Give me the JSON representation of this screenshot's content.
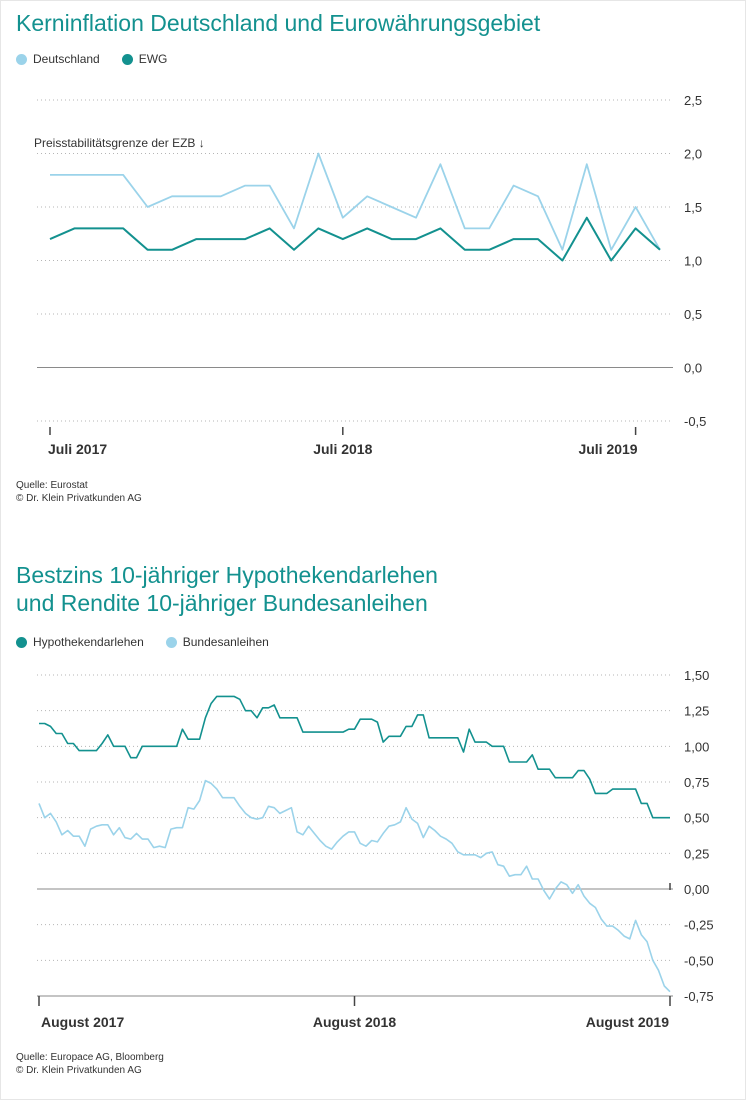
{
  "colors": {
    "accent": "#13918f",
    "light": "#9bd3ea",
    "text": "#333333",
    "grid": "#aaaaaa"
  },
  "chart_data": [
    {
      "type": "line",
      "title": "Kerninflation Deutschland und Eurowährungsgebiet",
      "legend": [
        "Deutschland",
        "EWG"
      ],
      "series": [
        {
          "name": "Deutschland",
          "color": "#9bd3ea",
          "values": [
            1.8,
            1.8,
            1.8,
            1.8,
            1.5,
            1.6,
            1.6,
            1.6,
            1.7,
            1.7,
            1.3,
            2.0,
            1.4,
            1.6,
            1.5,
            1.4,
            1.9,
            1.3,
            1.3,
            1.7,
            1.6,
            1.1,
            1.9,
            1.1,
            1.5,
            1.1
          ]
        },
        {
          "name": "EWG",
          "color": "#13918f",
          "values": [
            1.2,
            1.3,
            1.3,
            1.3,
            1.1,
            1.1,
            1.2,
            1.2,
            1.2,
            1.3,
            1.1,
            1.3,
            1.2,
            1.3,
            1.2,
            1.2,
            1.3,
            1.1,
            1.1,
            1.2,
            1.2,
            1.0,
            1.4,
            1.0,
            1.3,
            1.1
          ]
        }
      ],
      "x_labels": [
        "Juli 2017",
        "Juli 2018",
        "Juli 2019"
      ],
      "y_ticks": [
        "2,5",
        "2,0",
        "1,5",
        "1,0",
        "0,5",
        "0,0",
        "-0,5"
      ],
      "ylim": [
        -0.5,
        2.5
      ],
      "annotation": "Preisstabilitätsgrenze der EZB ↓",
      "source": [
        "Quelle: Eurostat",
        "© Dr. Klein Privatkunden AG"
      ]
    },
    {
      "type": "line",
      "title": [
        "Bestzins 10-jähriger Hypothekendarlehen",
        "und Rendite 10-jähriger Bundesanleihen"
      ],
      "legend": [
        "Hypothekendarlehen",
        "Bundesanleihen"
      ],
      "series": [
        {
          "name": "Hypothekendarlehen",
          "color": "#13918f",
          "points": [
            [
              0,
              1.16
            ],
            [
              1,
              1.16
            ],
            [
              2,
              1.14
            ],
            [
              3,
              1.09
            ],
            [
              4,
              1.09
            ],
            [
              5,
              1.02
            ],
            [
              6,
              1.02
            ],
            [
              7,
              0.97
            ],
            [
              8,
              0.97
            ],
            [
              9,
              0.97
            ],
            [
              10,
              0.97
            ],
            [
              11,
              1.02
            ],
            [
              12,
              1.08
            ],
            [
              13,
              1.0
            ],
            [
              14,
              1.0
            ],
            [
              15,
              1.0
            ],
            [
              16,
              0.92
            ],
            [
              17,
              0.92
            ],
            [
              18,
              1.0
            ],
            [
              19,
              1.0
            ],
            [
              20,
              1.0
            ],
            [
              21,
              1.0
            ],
            [
              22,
              1.0
            ],
            [
              23,
              1.0
            ],
            [
              24,
              1.0
            ],
            [
              25,
              1.12
            ],
            [
              26,
              1.05
            ],
            [
              27,
              1.05
            ],
            [
              28,
              1.05
            ],
            [
              29,
              1.2
            ],
            [
              30,
              1.3
            ],
            [
              31,
              1.35
            ],
            [
              32,
              1.35
            ],
            [
              33,
              1.35
            ],
            [
              34,
              1.35
            ],
            [
              35,
              1.33
            ],
            [
              36,
              1.25
            ],
            [
              37,
              1.25
            ],
            [
              38,
              1.2
            ],
            [
              39,
              1.27
            ],
            [
              40,
              1.27
            ],
            [
              41,
              1.29
            ],
            [
              42,
              1.2
            ],
            [
              43,
              1.2
            ],
            [
              44,
              1.2
            ],
            [
              45,
              1.2
            ],
            [
              46,
              1.1
            ],
            [
              47,
              1.1
            ],
            [
              48,
              1.1
            ],
            [
              49,
              1.1
            ],
            [
              50,
              1.1
            ],
            [
              51,
              1.1
            ],
            [
              52,
              1.1
            ],
            [
              53,
              1.1
            ],
            [
              54,
              1.12
            ],
            [
              55,
              1.12
            ],
            [
              56,
              1.19
            ],
            [
              57,
              1.19
            ],
            [
              58,
              1.19
            ],
            [
              59,
              1.17
            ],
            [
              60,
              1.03
            ],
            [
              61,
              1.07
            ],
            [
              62,
              1.07
            ],
            [
              63,
              1.07
            ],
            [
              64,
              1.14
            ],
            [
              65,
              1.14
            ],
            [
              66,
              1.22
            ],
            [
              67,
              1.22
            ],
            [
              68,
              1.06
            ],
            [
              69,
              1.06
            ],
            [
              70,
              1.06
            ],
            [
              71,
              1.06
            ],
            [
              72,
              1.06
            ],
            [
              73,
              1.06
            ],
            [
              74,
              0.96
            ],
            [
              75,
              1.12
            ],
            [
              76,
              1.03
            ],
            [
              77,
              1.03
            ],
            [
              78,
              1.03
            ],
            [
              79,
              1.0
            ],
            [
              80,
              1.0
            ],
            [
              81,
              1.0
            ],
            [
              82,
              0.89
            ],
            [
              83,
              0.89
            ],
            [
              84,
              0.89
            ],
            [
              85,
              0.89
            ],
            [
              86,
              0.94
            ],
            [
              87,
              0.84
            ],
            [
              88,
              0.84
            ],
            [
              89,
              0.84
            ],
            [
              90,
              0.78
            ],
            [
              91,
              0.78
            ],
            [
              92,
              0.78
            ],
            [
              93,
              0.78
            ],
            [
              94,
              0.83
            ],
            [
              95,
              0.83
            ],
            [
              96,
              0.77
            ],
            [
              97,
              0.67
            ],
            [
              98,
              0.67
            ],
            [
              99,
              0.67
            ],
            [
              100,
              0.7
            ],
            [
              101,
              0.7
            ],
            [
              102,
              0.7
            ],
            [
              103,
              0.7
            ],
            [
              104,
              0.7
            ],
            [
              105,
              0.6
            ],
            [
              106,
              0.6
            ],
            [
              107,
              0.5
            ],
            [
              108,
              0.5
            ],
            [
              109,
              0.5
            ],
            [
              110,
              0.5
            ]
          ]
        },
        {
          "name": "Bundesanleihen",
          "color": "#9bd3ea",
          "points": [
            [
              0,
              0.6
            ],
            [
              1,
              0.5
            ],
            [
              2,
              0.53
            ],
            [
              3,
              0.47
            ],
            [
              4,
              0.38
            ],
            [
              5,
              0.41
            ],
            [
              6,
              0.37
            ],
            [
              7,
              0.37
            ],
            [
              8,
              0.3
            ],
            [
              9,
              0.42
            ],
            [
              10,
              0.44
            ],
            [
              11,
              0.45
            ],
            [
              12,
              0.45
            ],
            [
              13,
              0.38
            ],
            [
              14,
              0.43
            ],
            [
              15,
              0.36
            ],
            [
              16,
              0.35
            ],
            [
              17,
              0.39
            ],
            [
              18,
              0.35
            ],
            [
              19,
              0.35
            ],
            [
              20,
              0.29
            ],
            [
              21,
              0.3
            ],
            [
              22,
              0.29
            ],
            [
              23,
              0.42
            ],
            [
              24,
              0.43
            ],
            [
              25,
              0.43
            ],
            [
              26,
              0.57
            ],
            [
              27,
              0.56
            ],
            [
              28,
              0.62
            ],
            [
              29,
              0.76
            ],
            [
              30,
              0.74
            ],
            [
              31,
              0.7
            ],
            [
              32,
              0.64
            ],
            [
              33,
              0.64
            ],
            [
              34,
              0.64
            ],
            [
              35,
              0.58
            ],
            [
              36,
              0.53
            ],
            [
              37,
              0.5
            ],
            [
              38,
              0.49
            ],
            [
              39,
              0.5
            ],
            [
              40,
              0.58
            ],
            [
              41,
              0.57
            ],
            [
              42,
              0.53
            ],
            [
              43,
              0.55
            ],
            [
              44,
              0.57
            ],
            [
              45,
              0.4
            ],
            [
              46,
              0.38
            ],
            [
              47,
              0.44
            ],
            [
              48,
              0.39
            ],
            [
              49,
              0.34
            ],
            [
              50,
              0.3
            ],
            [
              51,
              0.28
            ],
            [
              52,
              0.33
            ],
            [
              53,
              0.37
            ],
            [
              54,
              0.4
            ],
            [
              55,
              0.4
            ],
            [
              56,
              0.32
            ],
            [
              57,
              0.3
            ],
            [
              58,
              0.34
            ],
            [
              59,
              0.33
            ],
            [
              60,
              0.39
            ],
            [
              61,
              0.44
            ],
            [
              62,
              0.45
            ],
            [
              63,
              0.47
            ],
            [
              64,
              0.57
            ],
            [
              65,
              0.49
            ],
            [
              66,
              0.46
            ],
            [
              67,
              0.36
            ],
            [
              68,
              0.44
            ],
            [
              69,
              0.41
            ],
            [
              70,
              0.37
            ],
            [
              71,
              0.35
            ],
            [
              72,
              0.32
            ],
            [
              73,
              0.26
            ],
            [
              74,
              0.24
            ],
            [
              75,
              0.24
            ],
            [
              76,
              0.24
            ],
            [
              77,
              0.22
            ],
            [
              78,
              0.25
            ],
            [
              79,
              0.26
            ],
            [
              80,
              0.17
            ],
            [
              81,
              0.16
            ],
            [
              82,
              0.09
            ],
            [
              83,
              0.1
            ],
            [
              84,
              0.1
            ],
            [
              85,
              0.16
            ],
            [
              86,
              0.07
            ],
            [
              87,
              0.07
            ],
            [
              88,
              -0.01
            ],
            [
              89,
              -0.07
            ],
            [
              90,
              0.0
            ],
            [
              91,
              0.05
            ],
            [
              92,
              0.03
            ],
            [
              93,
              -0.03
            ],
            [
              94,
              0.03
            ],
            [
              95,
              -0.05
            ],
            [
              96,
              -0.1
            ],
            [
              97,
              -0.13
            ],
            [
              98,
              -0.21
            ],
            [
              99,
              -0.26
            ],
            [
              100,
              -0.26
            ],
            [
              101,
              -0.29
            ],
            [
              102,
              -0.33
            ],
            [
              103,
              -0.35
            ],
            [
              104,
              -0.22
            ],
            [
              105,
              -0.32
            ],
            [
              106,
              -0.37
            ],
            [
              107,
              -0.5
            ],
            [
              108,
              -0.57
            ],
            [
              109,
              -0.68
            ],
            [
              110,
              -0.72
            ]
          ]
        }
      ],
      "x_labels": [
        "August 2017",
        "August 2018",
        "August 2019"
      ],
      "y_ticks": [
        "1,50",
        "1,25",
        "1,00",
        "0,75",
        "0,50",
        "0,25",
        "0,00",
        "-0,25",
        "-0,50",
        "-0,75"
      ],
      "ylim": [
        -0.75,
        1.5
      ],
      "source": [
        "Quelle: Europace AG, Bloomberg",
        "© Dr. Klein Privatkunden AG"
      ]
    }
  ]
}
